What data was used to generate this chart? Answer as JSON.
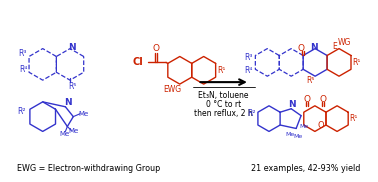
{
  "background_color": "#ffffff",
  "blue": "#3333cc",
  "red": "#cc2200",
  "black": "#000000",
  "dpi": 100,
  "figsize": [
    3.78,
    1.82
  ],
  "conditions": [
    "Et₃N, toluene",
    "0 °C to rt",
    "then reflux, 2 h"
  ],
  "ewg_label": "EWG = Electron-withdrawing Group",
  "yield_label": "21 examples, 42-93% yield"
}
